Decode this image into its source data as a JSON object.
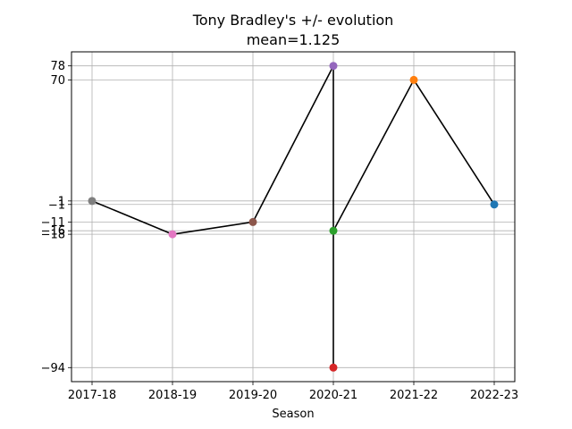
{
  "chart_data": {
    "type": "line",
    "title": "Tony Bradley's +/- evolution",
    "subtitle": "mean=1.125",
    "xlabel": "Season",
    "ylabel": "",
    "categories": [
      "2017-18",
      "2018-19",
      "2019-20",
      "2020-21",
      "2021-22",
      "2022-23"
    ],
    "points": [
      {
        "x": "2017-18",
        "y": 1,
        "color": "#7f7f7f"
      },
      {
        "x": "2018-19",
        "y": -18,
        "color": "#e377c2"
      },
      {
        "x": "2019-20",
        "y": -11,
        "color": "#8c564b"
      },
      {
        "x": "2020-21",
        "y": 78,
        "color": "#9467bd"
      },
      {
        "x": "2020-21",
        "y": -94,
        "color": "#d62728"
      },
      {
        "x": "2020-21",
        "y": -16,
        "color": "#2ca02c"
      },
      {
        "x": "2021-22",
        "y": 70,
        "color": "#ff7f0e"
      },
      {
        "x": "2022-23",
        "y": -1,
        "color": "#1f77b4"
      }
    ],
    "yticks": [
      -94,
      -18,
      -16,
      -11,
      -1,
      1,
      70,
      78
    ],
    "ytick_labels": [
      "−94",
      "−18",
      "−16",
      "−11",
      "−1",
      "1",
      "70",
      "78"
    ],
    "ylim": [
      -102,
      86
    ],
    "line_color": "#000000",
    "grid": true,
    "legend": "none"
  }
}
